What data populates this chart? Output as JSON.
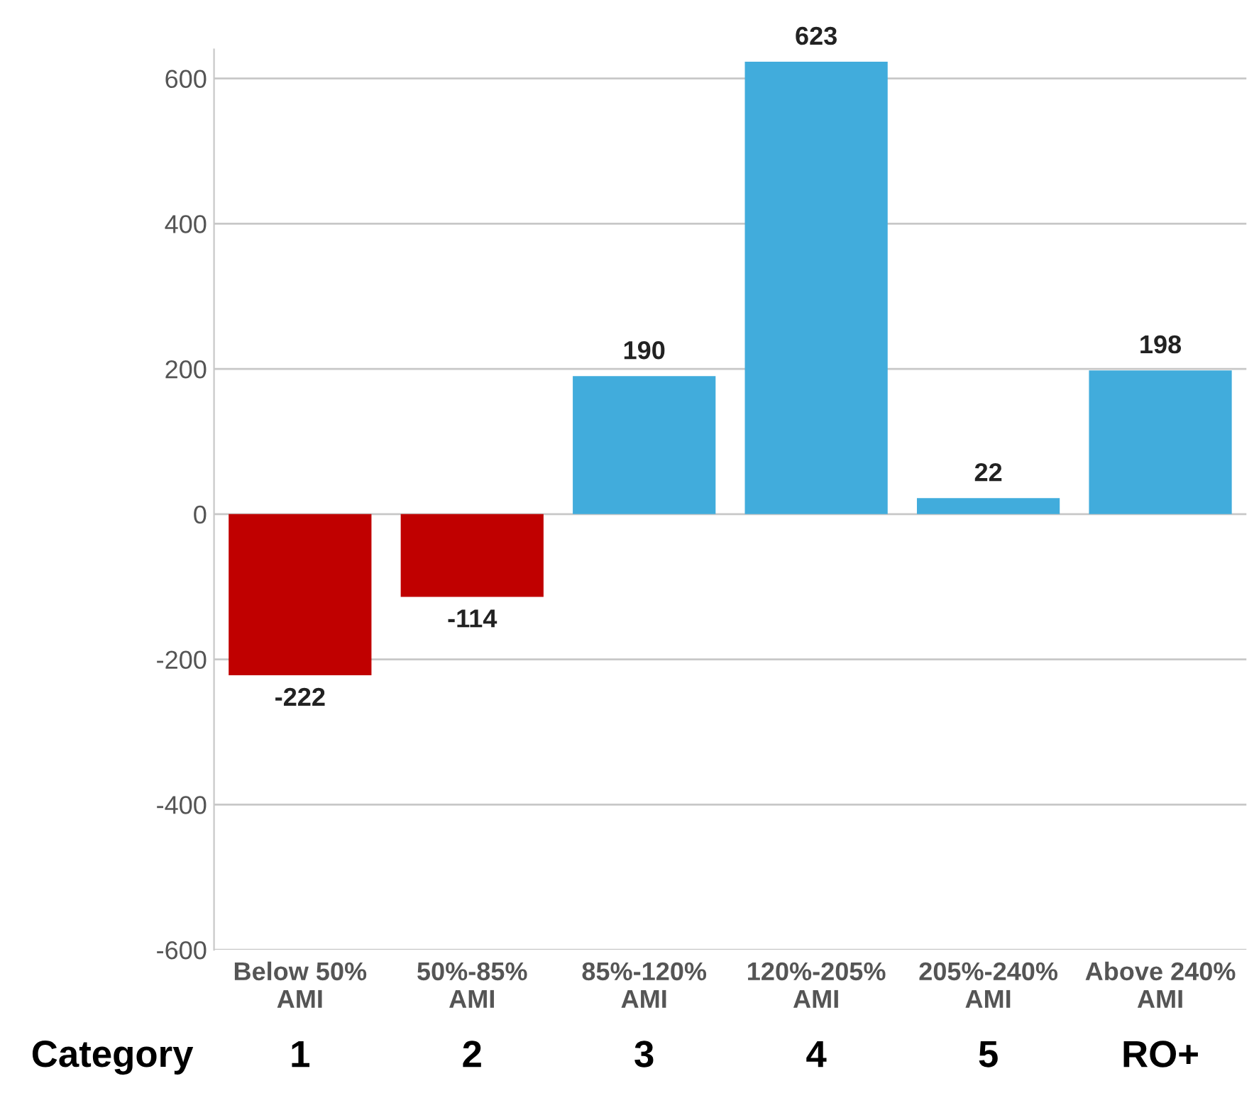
{
  "chart_data": {
    "type": "bar",
    "categories": [
      "Below 50%\nAMI",
      "50%-85%\nAMI",
      "85%-120%\nAMI",
      "120%-205%\nAMI",
      "205%-240%\nAMI",
      "Above 240%\nAMI"
    ],
    "values": [
      -222,
      -114,
      190,
      623,
      22,
      198
    ],
    "colors": [
      "#c00000",
      "#c00000",
      "#41acdc",
      "#41acdc",
      "#41acdc",
      "#41acdc"
    ],
    "data_labels": true,
    "ylim": [
      -600,
      640
    ],
    "yticks": [
      -600,
      -400,
      -200,
      0,
      200,
      400,
      600
    ],
    "grid": "y",
    "annotations": [
      "Category",
      "1",
      "2",
      "3",
      "4",
      "5",
      "RO+"
    ]
  }
}
